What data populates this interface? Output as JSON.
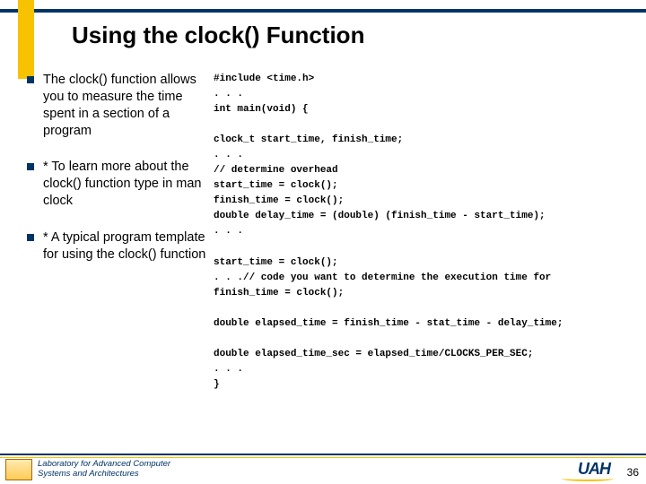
{
  "title": "Using the clock() Function",
  "bullets": [
    "The clock() function allows you to measure the time spent in a section of a program",
    "* To learn more about the clock() function type in man clock",
    "* A typical program template for using the clock() function"
  ],
  "code": {
    "l1": "#include <time.h>",
    "l2": ". . .",
    "l3": "int main(void) {",
    "l4": "",
    "l5": "clock_t start_time, finish_time;",
    "l6": ". . .",
    "l7": "// determine overhead",
    "l8": "start_time = clock();",
    "l9": "finish_time = clock();",
    "l10": "double delay_time = (double) (finish_time - start_time);",
    "l11": ". . .",
    "l12": "",
    "l13": "start_time = clock();",
    "l14": ". . .// code you want to determine the execution time for",
    "l15": "finish_time = clock();",
    "l16": "",
    "l17": "double elapsed_time = finish_time - stat_time - delay_time;",
    "l18": "",
    "l19": "double elapsed_time_sec = elapsed_time/CLOCKS_PER_SEC;",
    "l20": ". . .",
    "l21": "}"
  },
  "footer": {
    "lab1": "Laboratory for Advanced Computer",
    "lab2": "Systems and Architectures",
    "logo": "UAH",
    "page": "36"
  },
  "colors": {
    "navy": "#003366",
    "gold": "#f7c200"
  }
}
